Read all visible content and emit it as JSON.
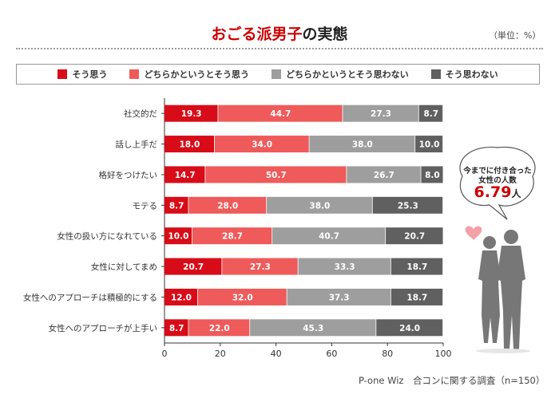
{
  "title": {
    "highlight": "おごる派男子",
    "rest": "の実態"
  },
  "unit": "（単位：%）",
  "source": "P-one Wiz　合コンに関する調査（n=150）",
  "balloon": {
    "line1": "今までに付き合った",
    "line2": "女性の人数",
    "value": "6.79",
    "unit": "人"
  },
  "colors": {
    "s1": "#d70c18",
    "s2": "#ef5a5a",
    "s3": "#9e9e9e",
    "s4": "#606060"
  },
  "chart_data": {
    "type": "bar",
    "orientation": "horizontal",
    "stacked": true,
    "categories": [
      "社交的だ",
      "話し上手だ",
      "格好をつけたい",
      "モテる",
      "女性の扱い方になれている",
      "女性に対してまめ",
      "女性へのアプローチは積極的にする",
      "女性へのアプローチが上手い"
    ],
    "series": [
      {
        "name": "そう思う",
        "values": [
          19.3,
          18.0,
          14.7,
          8.7,
          10.0,
          20.7,
          12.0,
          8.7
        ]
      },
      {
        "name": "どちらかというとそう思う",
        "values": [
          44.7,
          34.0,
          50.7,
          28.0,
          28.7,
          27.3,
          32.0,
          22.0
        ]
      },
      {
        "name": "どちらかというとそう思わない",
        "values": [
          27.3,
          38.0,
          26.7,
          38.0,
          40.7,
          33.3,
          37.3,
          45.3
        ]
      },
      {
        "name": "そう思わない",
        "values": [
          8.7,
          10.0,
          8.0,
          25.3,
          20.7,
          18.7,
          18.7,
          24.0
        ]
      }
    ],
    "xlim": [
      0,
      100
    ],
    "xticks": [
      "0",
      "20",
      "40",
      "60",
      "80",
      "100"
    ],
    "legend": "top",
    "grid": false
  }
}
